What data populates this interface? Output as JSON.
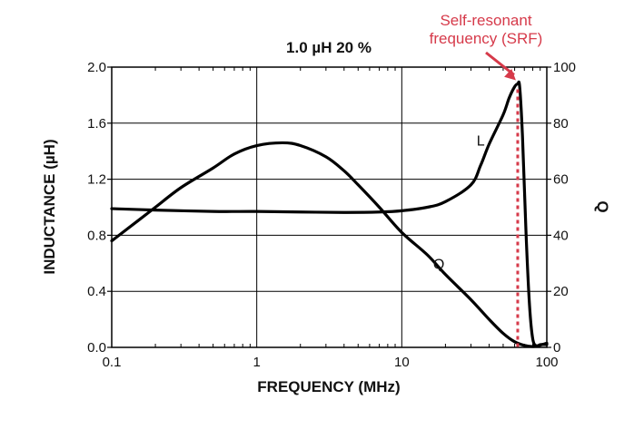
{
  "chart_data": {
    "type": "line",
    "title": "1.0 µH   20 %",
    "xlabel": "FREQUENCY (MHz)",
    "ylabel": "INDUCTANCE (µH)",
    "y2label": "Q",
    "xscale": "log",
    "xlim": [
      0.1,
      100
    ],
    "ylim": [
      0,
      2.0
    ],
    "y2lim": [
      0,
      100
    ],
    "grid": true,
    "x_ticks": [
      "0.1",
      "1",
      "10",
      "100"
    ],
    "y_ticks": [
      "0.0",
      "0.4",
      "0.8",
      "1.2",
      "1.6",
      "2.0"
    ],
    "y2_ticks": [
      "0",
      "20",
      "40",
      "60",
      "80",
      "100"
    ],
    "series": [
      {
        "name": "L",
        "axis": "left",
        "x": [
          0.1,
          0.2,
          0.5,
          1,
          2,
          4,
          7,
          10,
          15,
          20,
          30,
          35,
          40,
          50,
          55,
          60,
          63,
          65,
          68,
          72,
          76,
          80,
          85,
          90,
          100
        ],
        "y": [
          0.99,
          0.98,
          0.97,
          0.97,
          0.966,
          0.963,
          0.966,
          0.975,
          1.0,
          1.04,
          1.16,
          1.3,
          1.45,
          1.66,
          1.78,
          1.86,
          1.88,
          1.86,
          1.5,
          0.8,
          0.3,
          0.06,
          0.01,
          0.02,
          0.02
        ]
      },
      {
        "name": "Q",
        "axis": "right",
        "x": [
          0.1,
          0.15,
          0.2,
          0.3,
          0.5,
          0.7,
          1,
          1.5,
          2,
          3,
          4,
          5,
          7,
          10,
          15,
          20,
          30,
          40,
          50,
          60,
          70,
          80,
          90,
          100
        ],
        "y": [
          38,
          45,
          50,
          57,
          64,
          69,
          72,
          73,
          72,
          68,
          63,
          58,
          50,
          41,
          33,
          26,
          17,
          10,
          5,
          2,
          0.7,
          0.3,
          0.8,
          1.5
        ]
      }
    ],
    "annotations": [
      {
        "text_lines": [
          "Self-resonant",
          "frequency (SRF)"
        ],
        "color": "#d63a4a",
        "x": 63,
        "y": 1.88
      }
    ],
    "colors": {
      "curve": "#000000",
      "grid": "#000000",
      "annotation": "#d63a4a"
    }
  }
}
